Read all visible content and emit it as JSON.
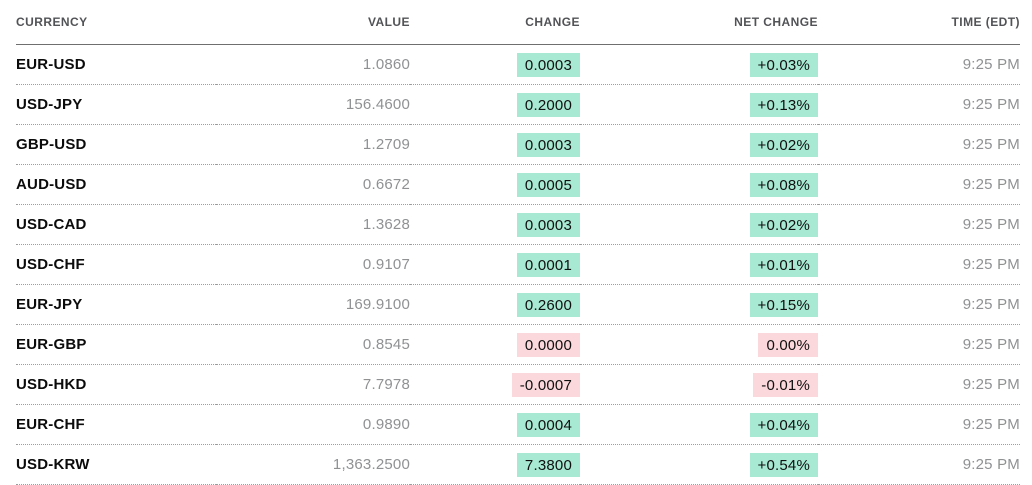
{
  "colors": {
    "positive_badge_bg": "#a7e9d3",
    "negative_badge_bg": "#fbd8db",
    "ticker_text": "#0b0b0b",
    "muted_text": "#8f9193",
    "header_text": "#525356"
  },
  "table": {
    "columns": [
      {
        "label": "CURRENCY",
        "align": "left"
      },
      {
        "label": "VALUE",
        "align": "right"
      },
      {
        "label": "CHANGE",
        "align": "right"
      },
      {
        "label": "NET CHANGE",
        "align": "right"
      },
      {
        "label": "TIME (EDT)",
        "align": "right"
      }
    ],
    "rows": [
      {
        "currency": "EUR-USD",
        "value": "1.0860",
        "change": "0.0003",
        "net_change": "+0.03%",
        "time": "9:25 PM",
        "direction": "up"
      },
      {
        "currency": "USD-JPY",
        "value": "156.4600",
        "change": "0.2000",
        "net_change": "+0.13%",
        "time": "9:25 PM",
        "direction": "up"
      },
      {
        "currency": "GBP-USD",
        "value": "1.2709",
        "change": "0.0003",
        "net_change": "+0.02%",
        "time": "9:25 PM",
        "direction": "up"
      },
      {
        "currency": "AUD-USD",
        "value": "0.6672",
        "change": "0.0005",
        "net_change": "+0.08%",
        "time": "9:25 PM",
        "direction": "up"
      },
      {
        "currency": "USD-CAD",
        "value": "1.3628",
        "change": "0.0003",
        "net_change": "+0.02%",
        "time": "9:25 PM",
        "direction": "up"
      },
      {
        "currency": "USD-CHF",
        "value": "0.9107",
        "change": "0.0001",
        "net_change": "+0.01%",
        "time": "9:25 PM",
        "direction": "up"
      },
      {
        "currency": "EUR-JPY",
        "value": "169.9100",
        "change": "0.2600",
        "net_change": "+0.15%",
        "time": "9:25 PM",
        "direction": "up"
      },
      {
        "currency": "EUR-GBP",
        "value": "0.8545",
        "change": "0.0000",
        "net_change": "0.00%",
        "time": "9:25 PM",
        "direction": "down"
      },
      {
        "currency": "USD-HKD",
        "value": "7.7978",
        "change": "-0.0007",
        "net_change": "-0.01%",
        "time": "9:25 PM",
        "direction": "down"
      },
      {
        "currency": "EUR-CHF",
        "value": "0.9890",
        "change": "0.0004",
        "net_change": "+0.04%",
        "time": "9:25 PM",
        "direction": "up"
      },
      {
        "currency": "USD-KRW",
        "value": "1,363.2500",
        "change": "7.3800",
        "net_change": "+0.54%",
        "time": "9:25 PM",
        "direction": "up"
      }
    ]
  }
}
